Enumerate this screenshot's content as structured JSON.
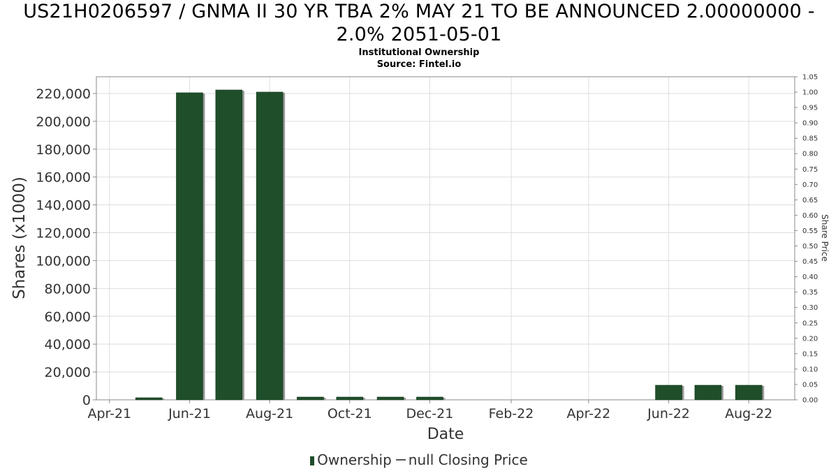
{
  "header": {
    "title_line1": "US21H0206597 / GNMA II 30 YR TBA 2% MAY 21 TO BE ANNOUNCED 2.00000000 -",
    "title_line2": "2.0% 2051-05-01",
    "subtitle1": "Institutional Ownership",
    "subtitle2": "Source: Fintel.io"
  },
  "legend": {
    "ownership": "Ownership",
    "closing_price": "null Closing Price"
  },
  "colors": {
    "bar": "#1f4e2a",
    "bar_shadow": "#9a9a9a",
    "grid": "#dddddd",
    "axis": "#888888"
  },
  "chart_data": {
    "type": "bar",
    "xlabel": "Date",
    "ylabel": "Shares (x1000)",
    "y2label": "Share Price",
    "x_tick_labels": [
      "Apr-21",
      "Jun-21",
      "Aug-21",
      "Oct-21",
      "Dec-21",
      "Feb-22",
      "Apr-22",
      "Jun-22",
      "Aug-22"
    ],
    "x_range": [
      "2021-03-22",
      "2022-09-05"
    ],
    "ylim": [
      0,
      232000
    ],
    "y_ticks": [
      0,
      20000,
      40000,
      60000,
      80000,
      100000,
      120000,
      140000,
      160000,
      180000,
      200000,
      220000
    ],
    "y_tick_labels": [
      "0",
      "20,000",
      "40,000",
      "60,000",
      "80,000",
      "100,000",
      "120,000",
      "140,000",
      "160,000",
      "180,000",
      "200,000",
      "220,000"
    ],
    "y2lim": [
      0,
      1.05
    ],
    "y2_tick_labels": [
      "0.00",
      "0.05",
      "0.10",
      "0.15",
      "0.20",
      "0.25",
      "0.30",
      "0.35",
      "0.40",
      "0.45",
      "0.50",
      "0.55",
      "0.60",
      "0.65",
      "0.70",
      "0.75",
      "0.80",
      "0.85",
      "0.90",
      "0.95",
      "1.00",
      "1.05"
    ],
    "grid": true,
    "legend_position": "bottom",
    "series": [
      {
        "name": "Ownership",
        "x": [
          "2021-05-01",
          "2021-06-01",
          "2021-07-01",
          "2021-08-01",
          "2021-09-01",
          "2021-10-01",
          "2021-11-01",
          "2021-12-01",
          "2022-06-01",
          "2022-07-01",
          "2022-08-01"
        ],
        "values": [
          1500,
          220500,
          222500,
          221000,
          2000,
          2000,
          2000,
          2000,
          10500,
          10500,
          10500
        ]
      }
    ]
  }
}
